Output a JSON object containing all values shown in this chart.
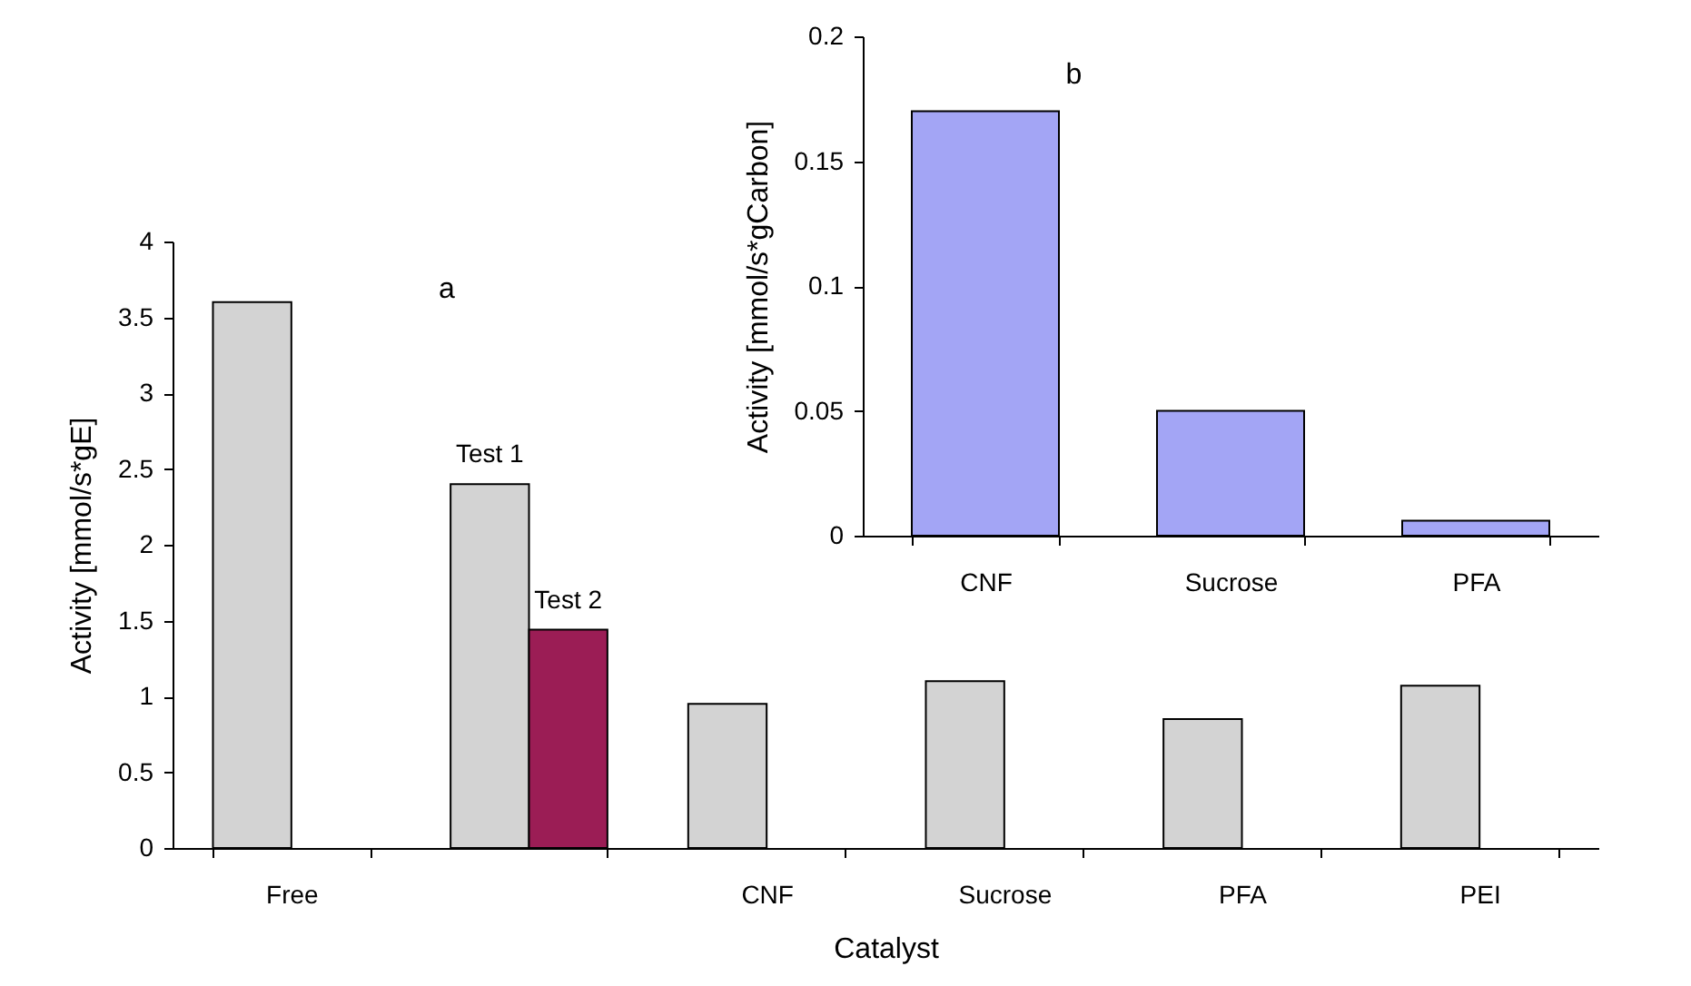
{
  "chart_data": [
    {
      "type": "bar",
      "title": "a",
      "xlabel": "Catalyst",
      "ylabel": "Activity [mmol/s*gE]",
      "categories": [
        "Free",
        null,
        "CNF",
        "Sucrose",
        "PFA",
        "PEI"
      ],
      "series": [
        {
          "name": "Test 1",
          "color": "#d3d3d3",
          "values": [
            3.6,
            2.4,
            0.95,
            1.1,
            0.85,
            1.07
          ]
        },
        {
          "name": "Test 2",
          "color": "#9b1d55",
          "values": [
            null,
            1.44,
            null,
            null,
            null,
            null
          ]
        }
      ],
      "ylim": [
        0,
        4
      ],
      "yticks": [
        0,
        0.5,
        1,
        1.5,
        2,
        2.5,
        3,
        3.5,
        4
      ],
      "grid": false,
      "legend": false
    },
    {
      "type": "bar",
      "title": "b",
      "ylabel": "Activity [mmol/s*gCarbon]",
      "categories": [
        "CNF",
        "Sucrose",
        "PFA"
      ],
      "series": [
        {
          "color": "#a3a5f5",
          "values": [
            0.17,
            0.05,
            0.006
          ]
        }
      ],
      "ylim": [
        0,
        0.2
      ],
      "yticks": [
        0,
        0.05,
        0.1,
        0.15,
        0.2
      ],
      "grid": false,
      "legend": false
    }
  ]
}
